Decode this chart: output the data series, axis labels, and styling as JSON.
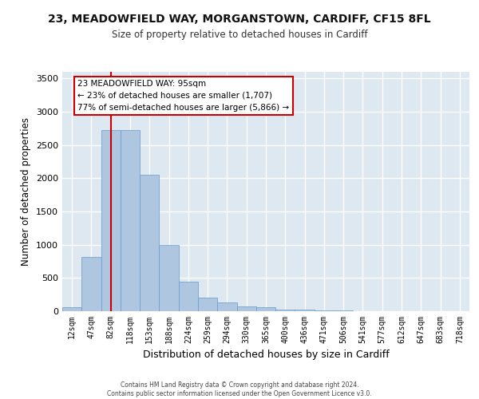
{
  "title_line1": "23, MEADOWFIELD WAY, MORGANSTOWN, CARDIFF, CF15 8FL",
  "title_line2": "Size of property relative to detached houses in Cardiff",
  "xlabel": "Distribution of detached houses by size in Cardiff",
  "ylabel": "Number of detached properties",
  "categories": [
    "12sqm",
    "47sqm",
    "82sqm",
    "118sqm",
    "153sqm",
    "188sqm",
    "224sqm",
    "259sqm",
    "294sqm",
    "330sqm",
    "365sqm",
    "400sqm",
    "436sqm",
    "471sqm",
    "506sqm",
    "541sqm",
    "577sqm",
    "612sqm",
    "647sqm",
    "683sqm",
    "718sqm"
  ],
  "values": [
    60,
    820,
    2720,
    2720,
    2050,
    1000,
    450,
    200,
    130,
    75,
    55,
    30,
    25,
    10,
    8,
    5,
    3,
    2,
    1,
    1,
    0
  ],
  "bar_color": "#aec6e0",
  "bar_edge_color": "#6699cc",
  "annotation_line1": "23 MEADOWFIELD WAY: 95sqm",
  "annotation_line2": "← 23% of detached houses are smaller (1,707)",
  "annotation_line3": "77% of semi-detached houses are larger (5,866) →",
  "annotation_box_color": "#ffffff",
  "annotation_box_edge_color": "#cc0000",
  "vline_color": "#cc0000",
  "ylim": [
    0,
    3600
  ],
  "yticks": [
    0,
    500,
    1000,
    1500,
    2000,
    2500,
    3000,
    3500
  ],
  "background_color": "#dde8f0",
  "grid_color": "#ffffff",
  "footer_line1": "Contains HM Land Registry data © Crown copyright and database right 2024.",
  "footer_line2": "Contains public sector information licensed under the Open Government Licence v3.0."
}
